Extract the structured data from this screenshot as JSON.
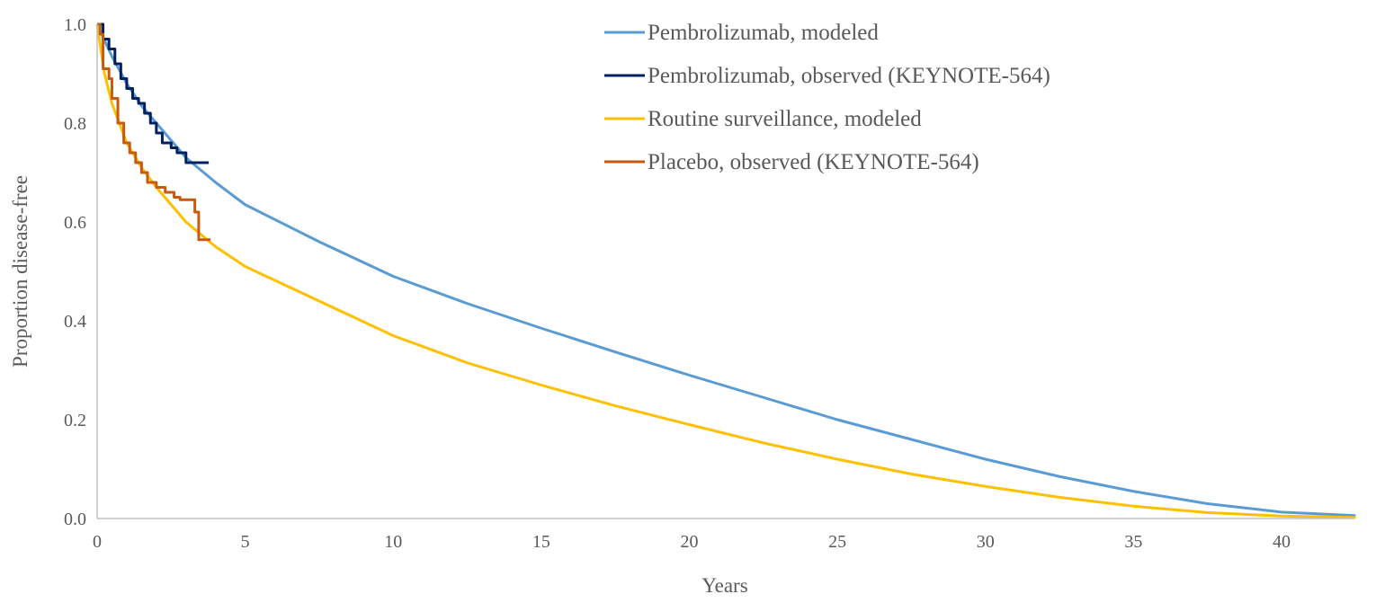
{
  "chart_data": {
    "type": "line",
    "title": "",
    "xlabel": "Years",
    "ylabel": "Proportion disease-free",
    "xlim": [
      0,
      42.5
    ],
    "ylim": [
      0,
      1.0
    ],
    "xticks": [
      0,
      5,
      10,
      15,
      20,
      25,
      30,
      35,
      40
    ],
    "xtick_labels": [
      "0",
      "5",
      "10",
      "15",
      "20",
      "25",
      "30",
      "35",
      "40"
    ],
    "yticks": [
      0,
      0.2,
      0.4,
      0.6,
      0.8,
      1.0
    ],
    "ytick_labels": [
      "0.0",
      "0.2",
      "0.4",
      "0.6",
      "0.8",
      "1.0"
    ],
    "grid": false,
    "legend_position": "top-right",
    "series": [
      {
        "name": "Pembrolizumab, modeled",
        "color": "#5B9BD5",
        "step": false,
        "x": [
          0,
          0.5,
          1,
          1.5,
          2,
          3,
          4,
          5,
          7.5,
          10,
          12.5,
          15,
          17.5,
          20,
          22.5,
          25,
          27.5,
          30,
          32.5,
          35,
          37.5,
          40,
          42.5
        ],
        "y": [
          1.0,
          0.935,
          0.88,
          0.835,
          0.8,
          0.73,
          0.68,
          0.635,
          0.56,
          0.49,
          0.435,
          0.385,
          0.337,
          0.29,
          0.245,
          0.2,
          0.16,
          0.12,
          0.085,
          0.055,
          0.03,
          0.013,
          0.006
        ]
      },
      {
        "name": "Pembrolizumab, observed (KEYNOTE-564)",
        "color": "#002060",
        "step": true,
        "x": [
          0,
          0.2,
          0.4,
          0.6,
          0.8,
          1.0,
          1.2,
          1.4,
          1.6,
          1.8,
          2.0,
          2.2,
          2.5,
          2.7,
          3.0,
          3.77
        ],
        "y": [
          1.0,
          0.97,
          0.95,
          0.92,
          0.89,
          0.87,
          0.85,
          0.84,
          0.82,
          0.8,
          0.78,
          0.76,
          0.75,
          0.74,
          0.72,
          0.72
        ]
      },
      {
        "name": "Routine surveillance, modeled",
        "color": "#FFC000",
        "step": false,
        "x": [
          0,
          0.25,
          0.5,
          1,
          1.5,
          2,
          3,
          4,
          5,
          7.5,
          10,
          12.5,
          15,
          17.5,
          20,
          22.5,
          25,
          27.5,
          30,
          32.5,
          35,
          37.5,
          40,
          42.5
        ],
        "y": [
          1.0,
          0.9,
          0.84,
          0.76,
          0.71,
          0.67,
          0.6,
          0.55,
          0.51,
          0.44,
          0.37,
          0.315,
          0.27,
          0.228,
          0.19,
          0.153,
          0.12,
          0.09,
          0.065,
          0.043,
          0.025,
          0.012,
          0.005,
          0.002
        ]
      },
      {
        "name": "Placebo, observed (KEYNOTE-564)",
        "color": "#C55A11",
        "step": true,
        "x": [
          0,
          0.1,
          0.2,
          0.4,
          0.5,
          0.7,
          0.9,
          1.1,
          1.3,
          1.5,
          1.7,
          2.0,
          2.3,
          2.6,
          2.8,
          3.3,
          3.43,
          3.83
        ],
        "y": [
          1.0,
          0.98,
          0.91,
          0.89,
          0.85,
          0.8,
          0.76,
          0.74,
          0.72,
          0.7,
          0.68,
          0.67,
          0.66,
          0.65,
          0.645,
          0.62,
          0.564,
          0.564
        ]
      }
    ]
  }
}
